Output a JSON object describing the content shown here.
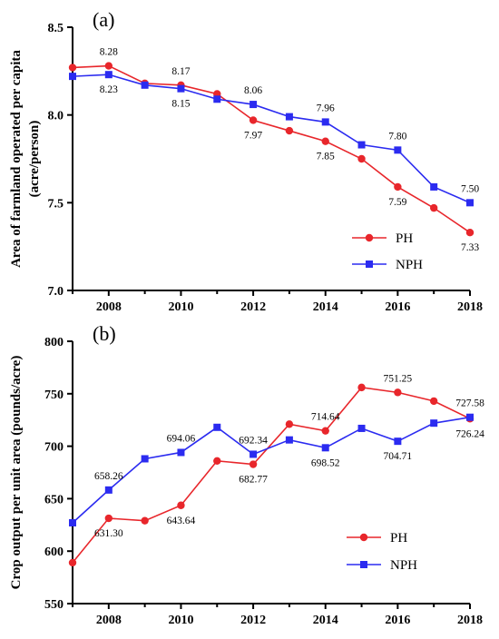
{
  "chart_data": [
    {
      "type": "line",
      "panel_label": "(a)",
      "ylabel_lines": [
        "Area of farmland operated per capita",
        "(acre/person)"
      ],
      "x": [
        2007,
        2008,
        2009,
        2010,
        2011,
        2012,
        2013,
        2014,
        2015,
        2016,
        2017,
        2018
      ],
      "xticks": [
        2008,
        2010,
        2012,
        2014,
        2016,
        2018
      ],
      "xlim": [
        2007,
        2018
      ],
      "ylim": [
        7.0,
        8.5
      ],
      "yticks": [
        7.0,
        7.5,
        8.0,
        8.5
      ],
      "ytick_labels": [
        "7.0",
        "7.5",
        "8.0",
        "8.5"
      ],
      "legend_position": "bottom-right",
      "series": [
        {
          "name": "PH",
          "color": "#e8262b",
          "marker": "circle",
          "values": [
            8.27,
            8.28,
            8.18,
            8.17,
            8.12,
            7.97,
            7.91,
            7.85,
            7.75,
            7.59,
            7.47,
            7.33
          ]
        },
        {
          "name": "NPH",
          "color": "#2b2bf0",
          "marker": "square",
          "values": [
            8.22,
            8.23,
            8.17,
            8.15,
            8.09,
            8.06,
            7.99,
            7.96,
            7.83,
            7.8,
            7.59,
            7.5
          ]
        }
      ],
      "annotations": [
        {
          "text": "8.28",
          "x": 2008,
          "y": 8.28,
          "pos": "above"
        },
        {
          "text": "8.23",
          "x": 2008,
          "y": 8.23,
          "pos": "below"
        },
        {
          "text": "8.17",
          "x": 2010,
          "y": 8.17,
          "pos": "above"
        },
        {
          "text": "8.15",
          "x": 2010,
          "y": 8.15,
          "pos": "below"
        },
        {
          "text": "8.06",
          "x": 2012,
          "y": 8.06,
          "pos": "above"
        },
        {
          "text": "7.97",
          "x": 2012,
          "y": 7.97,
          "pos": "below"
        },
        {
          "text": "7.96",
          "x": 2014,
          "y": 7.96,
          "pos": "above"
        },
        {
          "text": "7.85",
          "x": 2014,
          "y": 7.85,
          "pos": "below"
        },
        {
          "text": "7.80",
          "x": 2016,
          "y": 7.8,
          "pos": "above"
        },
        {
          "text": "7.59",
          "x": 2016,
          "y": 7.59,
          "pos": "below"
        },
        {
          "text": "7.50",
          "x": 2018,
          "y": 7.5,
          "pos": "above"
        },
        {
          "text": "7.33",
          "x": 2018,
          "y": 7.33,
          "pos": "below"
        }
      ]
    },
    {
      "type": "line",
      "panel_label": "(b)",
      "ylabel_lines": [
        "Crop output per unit area (pounds/acre)"
      ],
      "x": [
        2007,
        2008,
        2009,
        2010,
        2011,
        2012,
        2013,
        2014,
        2015,
        2016,
        2017,
        2018
      ],
      "xticks": [
        2008,
        2010,
        2012,
        2014,
        2016,
        2018
      ],
      "xlim": [
        2007,
        2018
      ],
      "ylim": [
        550,
        800
      ],
      "yticks": [
        550,
        600,
        650,
        700,
        750,
        800
      ],
      "ytick_labels": [
        "550",
        "600",
        "650",
        "700",
        "750",
        "800"
      ],
      "legend_position": "bottom-right",
      "series": [
        {
          "name": "PH",
          "color": "#e8262b",
          "marker": "circle",
          "values": [
            589,
            631.3,
            629,
            643.64,
            686,
            682.77,
            721,
            714.64,
            756,
            751.25,
            743,
            726.24
          ]
        },
        {
          "name": "NPH",
          "color": "#2b2bf0",
          "marker": "square",
          "values": [
            627,
            658.26,
            688,
            694.06,
            718,
            692.34,
            706,
            698.52,
            717,
            704.71,
            722,
            727.58
          ]
        }
      ],
      "annotations": [
        {
          "text": "658.26",
          "x": 2008,
          "y": 658.26,
          "pos": "above"
        },
        {
          "text": "631.30",
          "x": 2008,
          "y": 631.3,
          "pos": "below"
        },
        {
          "text": "694.06",
          "x": 2010,
          "y": 694.06,
          "pos": "above"
        },
        {
          "text": "643.64",
          "x": 2010,
          "y": 643.64,
          "pos": "below"
        },
        {
          "text": "692.34",
          "x": 2012,
          "y": 692.34,
          "pos": "above"
        },
        {
          "text": "682.77",
          "x": 2012,
          "y": 682.77,
          "pos": "below"
        },
        {
          "text": "714.64",
          "x": 2014,
          "y": 714.64,
          "pos": "above"
        },
        {
          "text": "698.52",
          "x": 2014,
          "y": 698.52,
          "pos": "below"
        },
        {
          "text": "751.25",
          "x": 2016,
          "y": 751.25,
          "pos": "above"
        },
        {
          "text": "704.71",
          "x": 2016,
          "y": 704.71,
          "pos": "below"
        },
        {
          "text": "727.58",
          "x": 2018,
          "y": 727.58,
          "pos": "above"
        },
        {
          "text": "726.24",
          "x": 2018,
          "y": 726.24,
          "pos": "below"
        }
      ]
    }
  ]
}
